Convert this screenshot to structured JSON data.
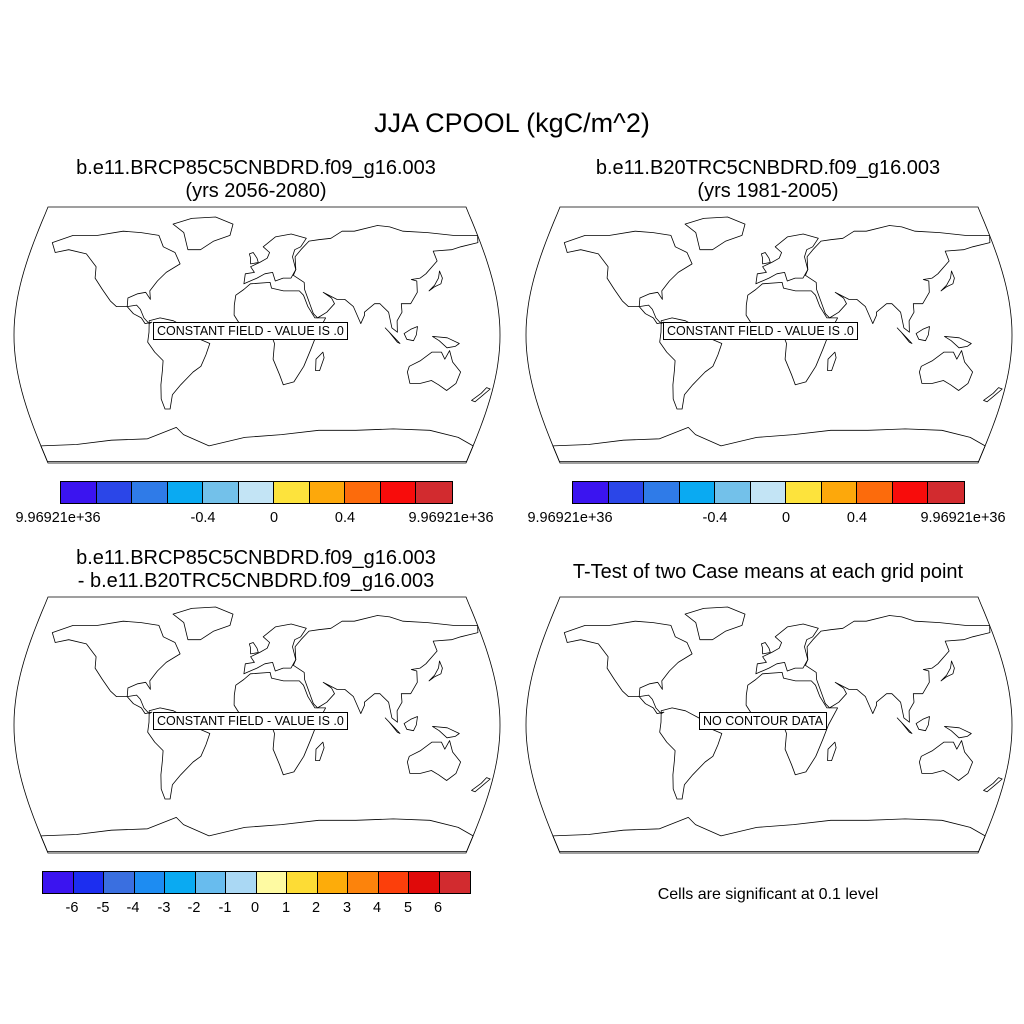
{
  "title": "JJA CPOOL (kgC/m^2)",
  "panels": [
    {
      "title_line1": "b.e11.BRCP85C5CNBDRD.f09_g16.003",
      "title_line2": "(yrs 2056-2080)",
      "label": "CONSTANT FIELD - VALUE IS .0"
    },
    {
      "title_line1": "b.e11.B20TRC5CNBDRD.f09_g16.003",
      "title_line2": "(yrs 1981-2005)",
      "label": "CONSTANT FIELD - VALUE IS .0"
    },
    {
      "title_line1": "b.e11.BRCP85C5CNBDRD.f09_g16.003",
      "title_line2": "- b.e11.B20TRC5CNBDRD.f09_g16.003",
      "label": "CONSTANT FIELD - VALUE IS .0"
    },
    {
      "title_line1": "T-Test of two Case means at each grid point",
      "title_line2": "",
      "label": "NO CONTOUR DATA"
    }
  ],
  "colorbar_top": {
    "colors": [
      "#3b14f0",
      "#2b46e8",
      "#2f7be8",
      "#0aaaf2",
      "#73c1ea",
      "#c3e4f5",
      "#fde33c",
      "#fda80b",
      "#fc6b0c",
      "#f80c0b",
      "#d22b2f"
    ],
    "tick_labels": [
      "9.96921e+36",
      "-0.4",
      "0",
      "0.4",
      "9.96921e+36"
    ]
  },
  "colorbar_bottom": {
    "colors": [
      "#3b14f0",
      "#1c2ef0",
      "#3a6fe0",
      "#1d8cf2",
      "#0aaaf2",
      "#68bcee",
      "#aad8f4",
      "#fefaa2",
      "#fddc35",
      "#fdac0a",
      "#fc830c",
      "#fc3f0b",
      "#e00a0a",
      "#d22b2f"
    ],
    "tick_labels": [
      "-6",
      "-5",
      "-4",
      "-3",
      "-2",
      "-1",
      "0",
      "1",
      "2",
      "3",
      "4",
      "5",
      "6"
    ]
  },
  "significance_note": "Cells are significant at 0.1 level"
}
